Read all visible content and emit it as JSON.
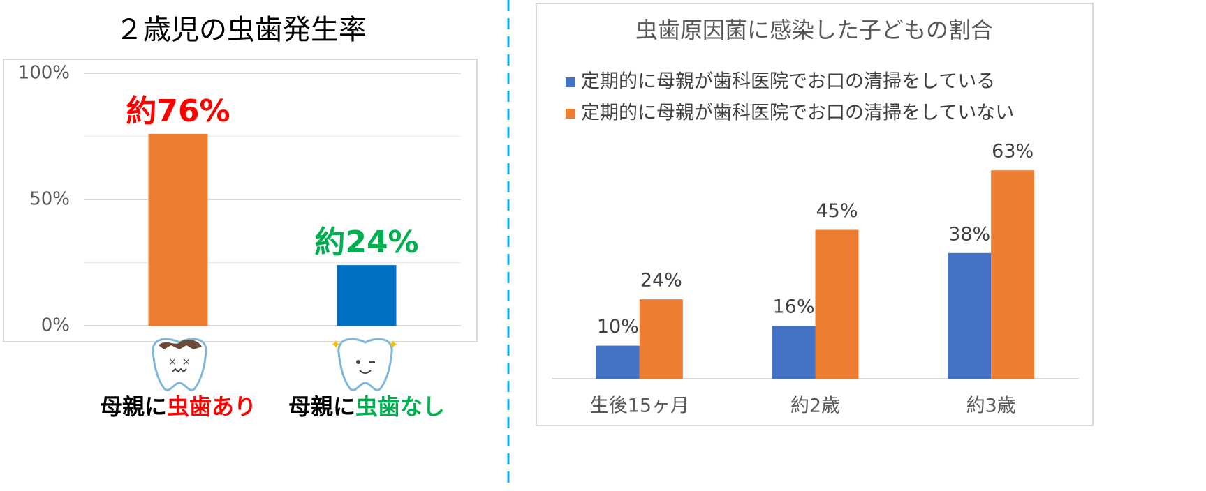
{
  "chart_data": [
    {
      "type": "bar",
      "title": "２歳児の虫歯発生率",
      "categories": [
        [
          "母親に",
          "虫歯あり"
        ],
        [
          "母親に",
          "虫歯なし"
        ]
      ],
      "category_colors": [
        "#ff0000",
        "#00b050"
      ],
      "values": [
        76,
        24
      ],
      "value_labels": [
        "約76%",
        "約24%"
      ],
      "value_label_colors": [
        "#ff0000",
        "#00b050"
      ],
      "colors": [
        "#ed7d31",
        "#0070c0"
      ],
      "ylim": [
        0,
        100
      ],
      "yticks": [
        {
          "value": 0,
          "label": "0%"
        },
        {
          "value": 50,
          "label": "50%"
        },
        {
          "value": 100,
          "label": "100%"
        }
      ],
      "minor_grid": [
        25,
        75
      ],
      "grid": true
    },
    {
      "type": "grouped-bar",
      "title": "虫歯原因菌に感染した子どもの割合",
      "categories": [
        "生後15ヶ月",
        "約2歳",
        "約3歳"
      ],
      "series": [
        {
          "name": "定期的に母親が歯科医院でお口の清掃をしている",
          "color": "#4472c4",
          "values": [
            10,
            16,
            38
          ],
          "value_labels": [
            "10%",
            "16%",
            "38%"
          ]
        },
        {
          "name": "定期的に母親が歯科医院でお口の清掃をしていない",
          "color": "#ed7d31",
          "values": [
            24,
            45,
            63
          ],
          "value_labels": [
            "24%",
            "45%",
            "63%"
          ]
        }
      ],
      "ylim": [
        0,
        70
      ],
      "legend": "top-left"
    }
  ]
}
